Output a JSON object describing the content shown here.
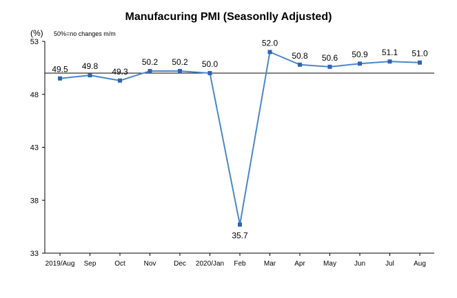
{
  "chart_data": {
    "type": "line",
    "title": "Manufacuring PMI (Seasonlly Adjusted)",
    "unit_label": "(%)",
    "note": "50%=no changes  m/m",
    "categories": [
      "2019/Aug",
      "Sep",
      "Oct",
      "Nov",
      "Dec",
      "2020/Jan",
      "Feb",
      "Mar",
      "Apr",
      "May",
      "Jun",
      "Jul",
      "Aug"
    ],
    "series": [
      {
        "values": [
          49.5,
          49.8,
          49.3,
          50.2,
          50.2,
          50.0,
          35.7,
          52.0,
          50.8,
          50.6,
          50.9,
          51.1,
          51.0
        ],
        "labels": [
          "49.5",
          "49.8",
          "49.3",
          "50.2",
          "50.2",
          "50.0",
          "35.7",
          "52.0",
          "50.8",
          "50.6",
          "50.9",
          "51.1",
          "51.0"
        ]
      }
    ],
    "yticks": [
      "33",
      "38",
      "43",
      "48",
      "53"
    ],
    "ylim": [
      33,
      53
    ],
    "reference_line": 50,
    "grid": false,
    "legend": "none",
    "colors": {
      "line": "#4a86c8",
      "marker": "#2e64b0",
      "axis": "#000000"
    }
  }
}
